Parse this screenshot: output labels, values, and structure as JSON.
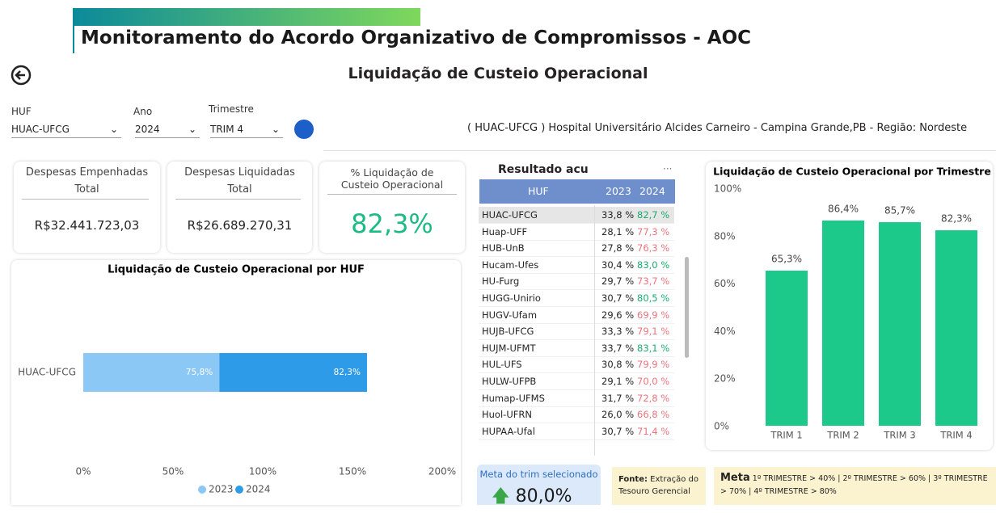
{
  "header": {
    "title": "Monitoramento do Acordo Organizativo de Compromissos - AOC",
    "page_title": "Liquidação de Custeio Operacional"
  },
  "filters": [
    {
      "label": "HUF",
      "value": "HUAC-UFCG"
    },
    {
      "label": "Ano",
      "value": "2024"
    },
    {
      "label": "Trimestre",
      "value": "TRIM 4"
    }
  ],
  "hospital_info": "( HUAC-UFCG ) Hospital Universitário Alcides Carneiro - Campina Grande,PB - Região: Nordeste",
  "cards": [
    {
      "title": "Despesas Empenhadas",
      "subtitle": "Total",
      "value": "R$32.441.723,03"
    },
    {
      "title": "Despesas Liquidadas",
      "subtitle": "Total",
      "value": "R$26.689.270,31"
    },
    {
      "title": "% Liquidação de Custeio Operacional",
      "value": "82,3%"
    }
  ],
  "table": {
    "title": "Resultado acu",
    "columns": [
      "HUF",
      "2023",
      "2024"
    ],
    "rows": [
      [
        "HUAC-UFCG",
        "33,8 %",
        "82,7 %"
      ],
      [
        "Huap-UFF",
        "28,1 %",
        "77,3 %"
      ],
      [
        "HUB-UnB",
        "27,8 %",
        "76,3 %"
      ],
      [
        "Hucam-Ufes",
        "30,4 %",
        "83,0 %"
      ],
      [
        "HU-Furg",
        "29,7 %",
        "73,7 %"
      ],
      [
        "HUGG-Unirio",
        "30,7 %",
        "80,5 %"
      ],
      [
        "HUGV-Ufam",
        "29,6 %",
        "69,9 %"
      ],
      [
        "HUJB-UFCG",
        "33,3 %",
        "79,1 %"
      ],
      [
        "HUJM-UFMT",
        "33,7 %",
        "83,1 %"
      ],
      [
        "HUL-UFS",
        "30,8 %",
        "79,9 %"
      ],
      [
        "HULW-UFPB",
        "29,1 %",
        "70,0 %"
      ],
      [
        "Humap-UFMS",
        "31,7 %",
        "72,8 %"
      ],
      [
        "Huol-UFRN",
        "26,0 %",
        "66,8 %"
      ],
      [
        "HUPAA-Ufal",
        "30,7 %",
        "71,4 %"
      ]
    ]
  },
  "meta_card": {
    "title": "Meta do trim selecionado",
    "value": "80,0%"
  },
  "source": {
    "label": "Fonte:",
    "text": "Extração do Tesouro Gerencial"
  },
  "meta_note": {
    "label": "Meta",
    "text": "1º TRIMESTRE > 40% | 2º TRIMESTRE > 60% | 3º TRIMESTRE > 70% | 4º TRIMESTRE > 80%"
  },
  "chart_data": [
    {
      "type": "hbar_stacked",
      "title": "Liquidação de Custeio Operacional por HUF",
      "categories": [
        "HUAC-UFCG"
      ],
      "series": [
        {
          "name": "2023",
          "color": "#8cc8f5",
          "values": [
            75.8
          ],
          "value_labels": [
            "75,8%"
          ]
        },
        {
          "name": "2024",
          "color": "#2e9be8",
          "values": [
            82.3
          ],
          "value_labels": [
            "82,3%"
          ]
        }
      ],
      "xlim": [
        0,
        200
      ],
      "xticks": [
        {
          "value": 0,
          "label": "0%"
        },
        {
          "value": 50,
          "label": "50%"
        },
        {
          "value": 100,
          "label": "100%"
        },
        {
          "value": 150,
          "label": "150%"
        },
        {
          "value": 200,
          "label": "200%"
        }
      ],
      "legend": "bottom"
    },
    {
      "type": "bar",
      "title": "Liquidação de Custeio Operacional por Trimestre",
      "categories": [
        "TRIM 1",
        "TRIM 2",
        "TRIM 3",
        "TRIM 4"
      ],
      "values": [
        65.3,
        86.4,
        85.7,
        82.3
      ],
      "value_labels": [
        "65,3%",
        "86,4%",
        "85,7%",
        "82,3%"
      ],
      "color": "#1dc98a",
      "ylim": [
        0,
        100
      ],
      "yticks": [
        {
          "value": 0,
          "label": "0%"
        },
        {
          "value": 20,
          "label": "20%"
        },
        {
          "value": 40,
          "label": "40%"
        },
        {
          "value": 60,
          "label": "60%"
        },
        {
          "value": 80,
          "label": "80%"
        },
        {
          "value": 100,
          "label": "100%"
        }
      ]
    }
  ]
}
